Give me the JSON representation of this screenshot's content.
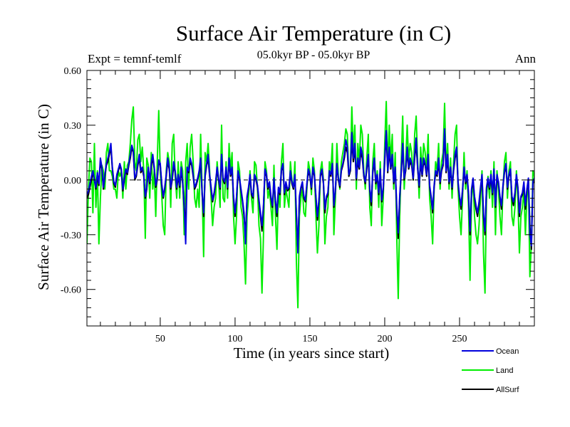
{
  "chart_data": {
    "type": "line",
    "title": "Surface Air Temperature (in C)",
    "subtitle": "05.0kyr BP - 05.0kyr BP",
    "left_label": "Expt = temnf-temlf",
    "right_label": "Ann",
    "xlabel": "Time (in years since start)",
    "ylabel": "Surface Air Temperature (in C)",
    "xlim": [
      1,
      300
    ],
    "ylim": [
      -0.8,
      0.6
    ],
    "xticks": [
      50,
      100,
      150,
      200,
      250
    ],
    "xtick_labels": [
      "50",
      "100",
      "150",
      "200",
      "250"
    ],
    "yticks": [
      0.6,
      0.3,
      0.0,
      -0.3,
      -0.6
    ],
    "ytick_labels": [
      "0.60",
      "0.30",
      "0.00",
      "-0.30",
      "-0.60"
    ],
    "zero_line": true,
    "series": [
      {
        "name": "Land",
        "color": "#00ee00",
        "values": [
          -0.35,
          -0.05,
          0.12,
          0.1,
          -0.18,
          0.2,
          -0.15,
          0.05,
          -0.35,
          -0.1,
          0.08,
          0.05,
          -0.05,
          0.15,
          0.2,
          0.05,
          0.05,
          0.02,
          -0.05,
          -0.05,
          -0.1,
          0.05,
          0.02,
          0.05,
          -0.1,
          0.1,
          -0.05,
          0.08,
          0.1,
          0.2,
          0.33,
          0.4,
          0.1,
          0.05,
          0.22,
          0.25,
          0.1,
          0.18,
          0.05,
          -0.32,
          0.12,
          0.08,
          -0.1,
          0.15,
          -0.05,
          0.05,
          -0.2,
          0.1,
          0.38,
          0.05,
          -0.08,
          -0.25,
          -0.3,
          0.05,
          0.15,
          0.1,
          -0.15,
          0.2,
          0.25,
          0.02,
          -0.1,
          0.1,
          -0.1,
          0.1,
          0.05,
          -0.3,
          0.1,
          0.2,
          -0.05,
          0.18,
          0.25,
          0.1,
          -0.1,
          -0.15,
          -0.05,
          -0.15,
          0.25,
          -0.05,
          -0.42,
          0.15,
          0.1,
          0.2,
          0.05,
          -0.1,
          -0.25,
          -0.15,
          -0.1,
          0.1,
          0.0,
          -0.15,
          0.3,
          -0.1,
          -0.12,
          0.1,
          -0.1,
          0.2,
          0.05,
          0.15,
          -0.2,
          -0.35,
          -0.2,
          0.1,
          0.05,
          -0.15,
          -0.2,
          -0.35,
          -0.57,
          -0.2,
          -0.1,
          0.05,
          -0.1,
          -0.18,
          0.1,
          0.08,
          -0.05,
          -0.25,
          -0.32,
          -0.62,
          -0.3,
          0.1,
          0.05,
          -0.1,
          -0.05,
          -0.15,
          -0.25,
          0.08,
          -0.2,
          -0.38,
          -0.05,
          -0.15,
          0.1,
          0.2,
          -0.15,
          -0.05,
          -0.1,
          -0.15,
          0.1,
          0.0,
          -0.05,
          0.1,
          -0.45,
          -0.7,
          -0.2,
          -0.1,
          -0.05,
          -0.18,
          -0.2,
          -0.05,
          0.1,
          0.05,
          -0.08,
          0.12,
          0.05,
          -0.2,
          -0.4,
          -0.25,
          0.05,
          0.1,
          0.0,
          -0.35,
          -0.2,
          -0.15,
          0.1,
          0.05,
          0.2,
          -0.3,
          -0.1,
          0.2,
          0.02,
          -0.05,
          0.1,
          0.15,
          0.2,
          0.28,
          0.25,
          0.02,
          0.05,
          0.4,
          0.15,
          0.3,
          -0.05,
          0.2,
          0.1,
          0.3,
          0.25,
          0.05,
          -0.05,
          0.12,
          0.25,
          -0.15,
          -0.25,
          0.1,
          0.2,
          -0.05,
          0.05,
          -0.15,
          0.1,
          -0.25,
          -0.1,
          0.2,
          0.43,
          0.05,
          0.3,
          0.1,
          0.25,
          -0.05,
          0.15,
          -0.3,
          -0.65,
          -0.2,
          0.1,
          0.35,
          -0.05,
          0.1,
          0.3,
          0.1,
          0.2,
          0.15,
          0.0,
          0.25,
          0.35,
          0.1,
          -0.1,
          0.18,
          0.05,
          0.2,
          0.15,
          0.05,
          0.25,
          -0.1,
          -0.2,
          -0.35,
          -0.05,
          0.1,
          0.05,
          0.2,
          -0.05,
          0.1,
          0.15,
          0.42,
          0.05,
          0.2,
          -0.05,
          0.12,
          -0.1,
          0.1,
          0.25,
          0.3,
          -0.05,
          -0.2,
          -0.3,
          -0.1,
          0.15,
          -0.05,
          0.05,
          -0.15,
          -0.55,
          -0.1,
          0.0,
          -0.2,
          -0.3,
          -0.35,
          -0.25,
          -0.1,
          0.05,
          -0.4,
          -0.62,
          -0.1,
          0.02,
          -0.1,
          0.05,
          -0.15,
          0.1,
          -0.3,
          0.05,
          -0.05,
          -0.2,
          -0.3,
          -0.05,
          0.1,
          0.15,
          -0.1,
          0.05,
          0.1,
          -0.2,
          -0.25,
          -0.15,
          0.05,
          -0.1,
          -0.4,
          -0.2,
          -0.15,
          -0.05,
          -0.3,
          -0.1,
          0.0,
          -0.53,
          -0.35,
          0.05,
          0.02,
          -0.15,
          0.15,
          -0.38,
          0.05
        ]
      },
      {
        "name": "AllSurf",
        "color": "#000000",
        "values": [
          -0.1,
          -0.08,
          -0.04,
          0.0,
          0.04,
          0.0,
          -0.05,
          0.02,
          -0.03,
          0.1,
          0.06,
          -0.05,
          0.02,
          0.08,
          0.1,
          0.14,
          0.18,
          0.06,
          -0.02,
          -0.04,
          0.02,
          0.05,
          0.08,
          0.05,
          -0.06,
          0.0,
          0.05,
          0.03,
          0.08,
          0.12,
          0.18,
          0.15,
          0.0,
          0.02,
          0.08,
          0.12,
          0.04,
          0.06,
          0.02,
          -0.1,
          -0.05,
          0.06,
          -0.02,
          0.08,
          0.12,
          0.06,
          -0.04,
          0.0,
          0.1,
          0.08,
          -0.03,
          -0.1,
          -0.05,
          0.02,
          0.1,
          0.06,
          -0.05,
          0.0,
          0.08,
          0.04,
          -0.05,
          0.02,
          -0.04,
          0.06,
          -0.02,
          -0.15,
          -0.25,
          0.06,
          0.04,
          0.1,
          0.08,
          0.02,
          -0.05,
          -0.03,
          0.0,
          0.04,
          0.1,
          -0.08,
          -0.2,
          0.02,
          0.08,
          0.12,
          0.02,
          -0.05,
          -0.12,
          -0.08,
          -0.02,
          0.06,
          0.0,
          -0.05,
          0.12,
          0.0,
          -0.02,
          0.06,
          -0.05,
          0.1,
          0.02,
          0.06,
          -0.1,
          -0.2,
          -0.1,
          0.04,
          0.0,
          -0.06,
          -0.12,
          -0.2,
          -0.3,
          -0.1,
          -0.05,
          0.02,
          -0.08,
          -0.1,
          0.02,
          0.0,
          -0.04,
          -0.12,
          -0.2,
          -0.28,
          -0.15,
          0.05,
          0.02,
          -0.05,
          -0.02,
          -0.1,
          -0.15,
          0.0,
          -0.12,
          -0.2,
          -0.05,
          -0.08,
          0.05,
          0.08,
          -0.08,
          -0.02,
          -0.06,
          -0.05,
          0.04,
          -0.02,
          -0.05,
          0.02,
          -0.2,
          -0.38,
          -0.1,
          -0.05,
          -0.02,
          -0.1,
          -0.12,
          -0.03,
          0.05,
          0.02,
          -0.05,
          0.06,
          0.02,
          -0.1,
          -0.22,
          -0.12,
          0.02,
          0.05,
          -0.02,
          -0.18,
          -0.1,
          -0.08,
          0.04,
          0.02,
          0.08,
          -0.15,
          -0.06,
          0.08,
          0.0,
          -0.04,
          0.05,
          0.08,
          0.12,
          0.18,
          0.15,
          0.02,
          0.05,
          0.22,
          0.1,
          0.18,
          0.0,
          0.1,
          0.06,
          0.15,
          0.12,
          0.02,
          -0.02,
          0.06,
          0.12,
          -0.06,
          -0.14,
          0.04,
          0.1,
          -0.02,
          0.02,
          -0.08,
          0.05,
          -0.12,
          -0.05,
          0.1,
          0.26,
          0.04,
          0.16,
          0.06,
          0.12,
          -0.02,
          0.06,
          -0.16,
          -0.32,
          -0.1,
          0.04,
          0.18,
          0.0,
          0.05,
          0.16,
          0.06,
          0.1,
          0.08,
          0.0,
          0.12,
          0.2,
          0.06,
          -0.04,
          0.1,
          0.02,
          0.1,
          0.08,
          0.02,
          0.12,
          -0.04,
          -0.1,
          -0.18,
          -0.04,
          0.04,
          0.02,
          0.1,
          -0.02,
          0.05,
          0.08,
          0.26,
          0.04,
          0.12,
          -0.02,
          0.06,
          -0.05,
          0.05,
          0.12,
          0.16,
          -0.02,
          -0.1,
          -0.16,
          -0.06,
          0.06,
          -0.02,
          0.02,
          -0.08,
          -0.3,
          -0.06,
          0.0,
          -0.1,
          -0.16,
          -0.2,
          -0.14,
          -0.05,
          0.02,
          -0.2,
          -0.3,
          -0.05,
          0.0,
          -0.05,
          0.02,
          -0.08,
          0.05,
          -0.15,
          0.02,
          -0.02,
          -0.1,
          -0.16,
          -0.04,
          0.04,
          0.08,
          -0.05,
          0.02,
          0.05,
          -0.1,
          -0.14,
          -0.08,
          0.02,
          -0.05,
          -0.2,
          -0.1,
          -0.08,
          -0.02,
          -0.16,
          -0.06,
          0.0,
          -0.25,
          -0.38,
          -0.02,
          0.0,
          -0.08,
          0.06,
          -0.18,
          0.1
        ]
      },
      {
        "name": "Ocean",
        "color": "#0000dd",
        "values": [
          -0.08,
          -0.06,
          -0.02,
          0.02,
          0.05,
          0.0,
          -0.04,
          0.04,
          -0.02,
          0.12,
          0.07,
          -0.04,
          0.03,
          0.09,
          0.12,
          0.15,
          0.2,
          0.07,
          -0.01,
          -0.03,
          0.03,
          0.06,
          0.09,
          0.06,
          -0.05,
          0.01,
          0.06,
          0.04,
          0.09,
          0.14,
          0.19,
          0.16,
          0.01,
          0.03,
          0.09,
          0.14,
          0.05,
          0.07,
          0.03,
          -0.09,
          -0.04,
          0.07,
          -0.01,
          0.09,
          0.14,
          0.07,
          -0.03,
          0.01,
          0.11,
          0.09,
          -0.02,
          -0.09,
          -0.04,
          0.03,
          0.12,
          0.07,
          -0.04,
          0.01,
          0.1,
          0.05,
          -0.04,
          0.03,
          -0.03,
          0.07,
          -0.01,
          -0.14,
          -0.35,
          0.07,
          0.05,
          0.12,
          0.09,
          0.03,
          -0.04,
          -0.02,
          0.01,
          0.05,
          0.12,
          -0.07,
          -0.18,
          0.03,
          0.09,
          0.14,
          0.03,
          -0.04,
          -0.11,
          -0.07,
          -0.01,
          0.07,
          0.01,
          -0.04,
          0.14,
          0.01,
          -0.01,
          0.07,
          -0.04,
          0.12,
          0.03,
          0.07,
          -0.09,
          -0.18,
          -0.09,
          0.05,
          0.01,
          -0.05,
          -0.11,
          -0.18,
          -0.35,
          -0.09,
          -0.04,
          0.03,
          -0.07,
          -0.09,
          0.03,
          0.01,
          -0.03,
          -0.11,
          -0.18,
          -0.25,
          -0.14,
          0.06,
          0.03,
          -0.04,
          -0.01,
          -0.09,
          -0.14,
          0.01,
          -0.11,
          -0.18,
          -0.04,
          -0.07,
          0.06,
          0.09,
          -0.07,
          -0.01,
          -0.05,
          -0.04,
          0.05,
          -0.01,
          -0.04,
          0.03,
          -0.18,
          -0.4,
          -0.09,
          -0.04,
          -0.01,
          -0.09,
          -0.11,
          -0.02,
          0.06,
          0.03,
          -0.04,
          0.07,
          0.03,
          -0.09,
          -0.2,
          -0.11,
          0.03,
          0.06,
          -0.01,
          -0.16,
          -0.09,
          -0.07,
          0.05,
          0.03,
          0.09,
          -0.14,
          -0.05,
          0.09,
          0.01,
          -0.03,
          0.06,
          0.09,
          0.14,
          0.22,
          0.18,
          0.03,
          0.06,
          0.26,
          0.12,
          0.2,
          0.01,
          0.12,
          0.07,
          0.18,
          0.14,
          0.03,
          -0.01,
          0.07,
          0.14,
          -0.05,
          -0.12,
          0.05,
          0.12,
          -0.01,
          0.03,
          -0.07,
          0.06,
          -0.11,
          -0.04,
          0.12,
          0.27,
          0.05,
          0.18,
          0.07,
          0.14,
          -0.01,
          0.07,
          -0.14,
          -0.29,
          -0.09,
          0.05,
          0.2,
          0.01,
          0.06,
          0.18,
          0.07,
          0.12,
          0.09,
          0.01,
          0.14,
          0.23,
          0.07,
          -0.03,
          0.12,
          0.03,
          0.12,
          0.09,
          0.03,
          0.14,
          -0.03,
          -0.09,
          -0.16,
          -0.03,
          0.05,
          0.03,
          0.12,
          -0.01,
          0.06,
          0.09,
          0.28,
          0.05,
          0.14,
          -0.01,
          0.07,
          -0.04,
          0.06,
          0.14,
          0.18,
          -0.01,
          -0.09,
          -0.14,
          -0.05,
          0.07,
          -0.01,
          0.03,
          -0.07,
          -0.28,
          -0.05,
          0.01,
          -0.09,
          -0.14,
          -0.18,
          -0.12,
          -0.04,
          0.03,
          -0.18,
          -0.28,
          -0.04,
          0.01,
          -0.04,
          0.03,
          -0.07,
          0.06,
          -0.14,
          0.03,
          -0.01,
          -0.09,
          -0.14,
          -0.03,
          0.05,
          0.09,
          -0.04,
          0.03,
          0.06,
          -0.09,
          -0.12,
          -0.07,
          0.03,
          -0.04,
          -0.18,
          -0.09,
          -0.07,
          -0.01,
          -0.14,
          -0.05,
          0.01,
          -0.3,
          -0.36,
          -0.01,
          0.01,
          -0.07,
          0.07,
          -0.2,
          0.12
        ]
      }
    ],
    "legend": [
      {
        "name": "Ocean",
        "color": "#0000dd"
      },
      {
        "name": "Land",
        "color": "#00ee00"
      },
      {
        "name": "AllSurf",
        "color": "#000000"
      }
    ],
    "legend_position": "bottom-right"
  }
}
